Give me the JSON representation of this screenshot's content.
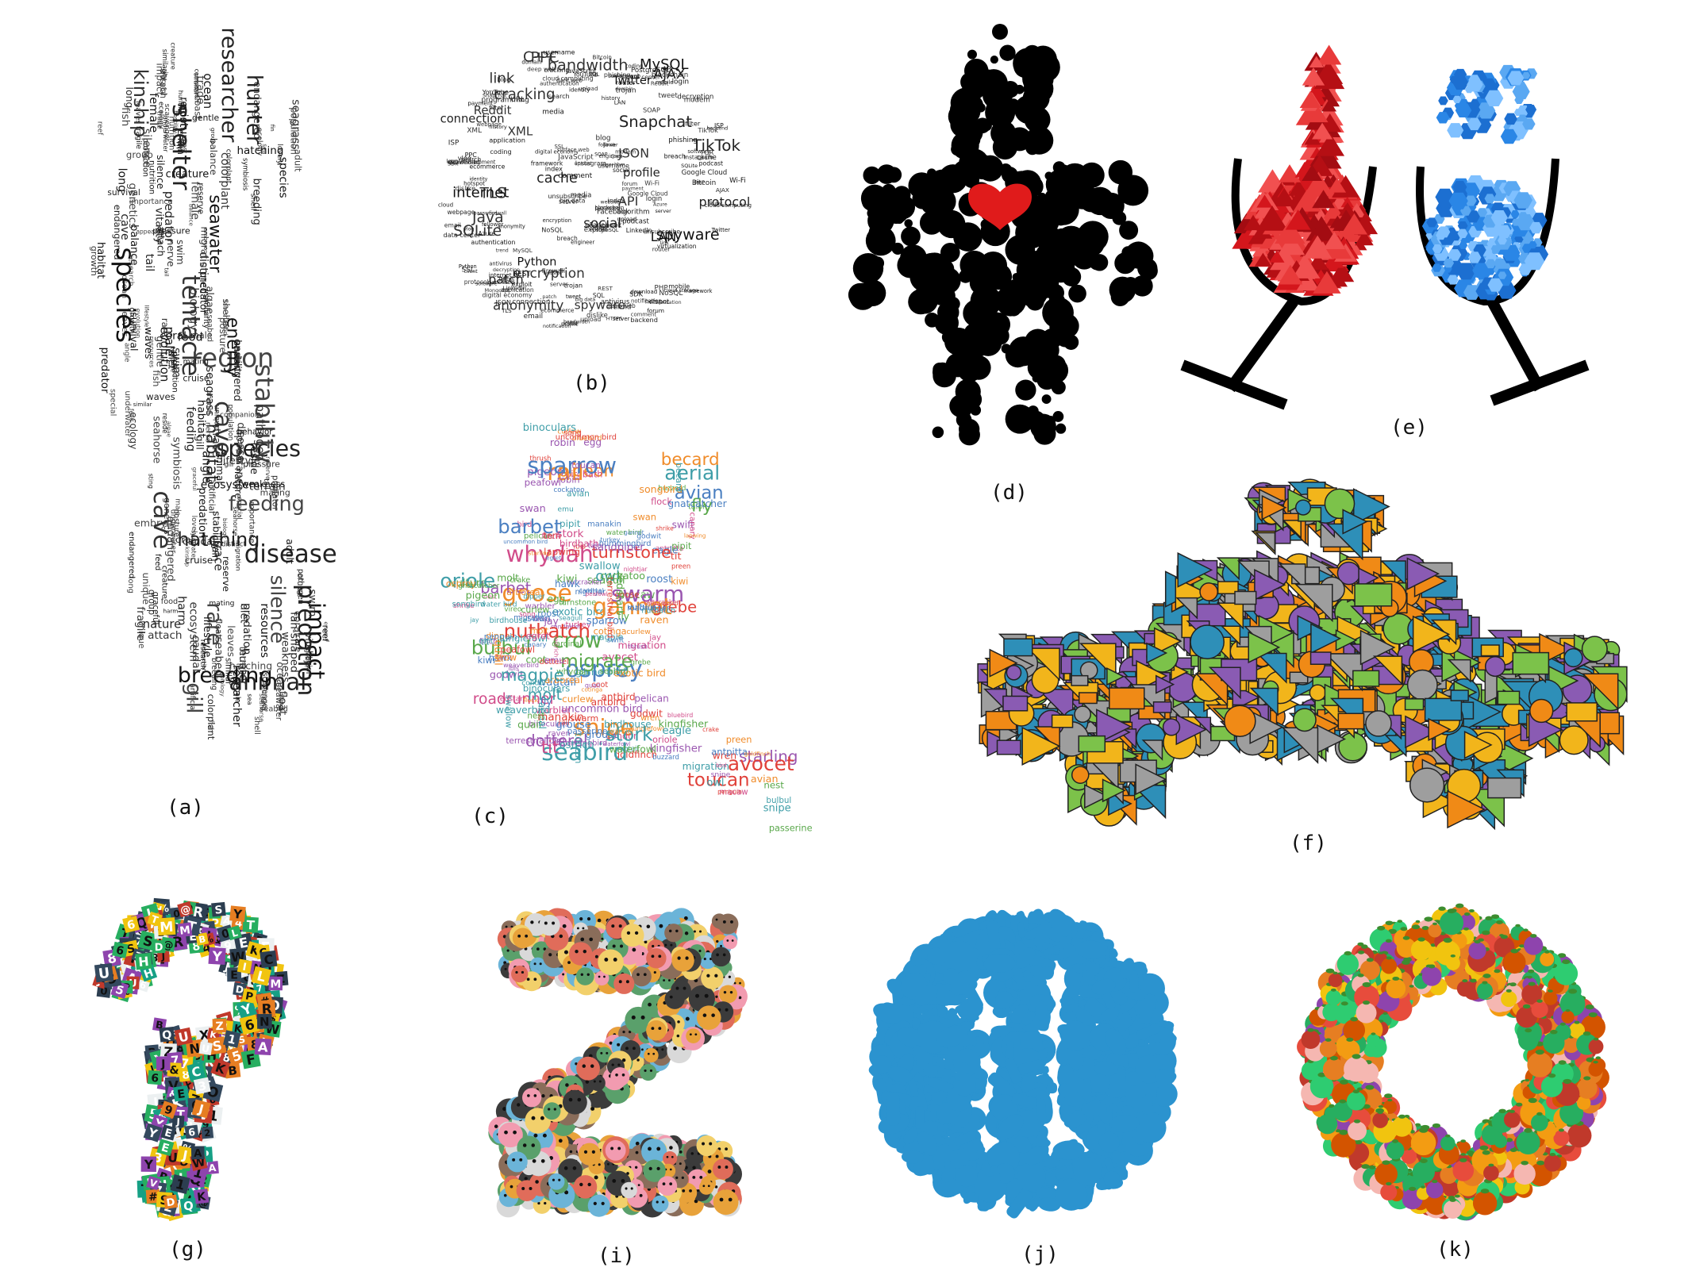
{
  "captions": {
    "a": "(a)",
    "b": "(b)",
    "c": "(c)",
    "d": "(d)",
    "e": "(e)",
    "f": "(f)",
    "g": "(g)",
    "i": "(i)",
    "j": "(j)",
    "k": "(k)"
  },
  "colors": {
    "black": "#000000",
    "heart_red": "#e01b1b",
    "wine_red": "#d4161c",
    "water_blue": "#2a86e6",
    "taxi_yellow": "#f2b51b",
    "taxi_orange": "#f08a16",
    "taxi_blue": "#2e8fb8",
    "taxi_green": "#7cc24a",
    "taxi_purple": "#8a5bb3",
    "taxi_gray": "#9e9e9e",
    "plate_blue": "#2b93cf"
  },
  "panel_a": {
    "shape": "seahorse",
    "words": [
      "seahorse",
      "ocean",
      "fish",
      "gill",
      "coral",
      "rare",
      "underwater",
      "creature",
      "species",
      "protection",
      "gentle",
      "endangered",
      "cruise",
      "posture",
      "biology",
      "shell",
      "female",
      "predation",
      "colorplant",
      "long",
      "seawater",
      "mating",
      "tail",
      "leaves",
      "lifestyle",
      "cave",
      "ecology",
      "unique",
      "hatching",
      "male",
      "breeding",
      "graceful",
      "silence",
      "balance",
      "habitat",
      "swim",
      "seabed",
      "reserve",
      "animal",
      "similar",
      "group",
      "attach",
      "hunting",
      "special",
      "enemy",
      "impact",
      "disease",
      "region",
      "harm",
      "algae",
      "adult",
      "growth",
      "endangered",
      "feeding",
      "nature",
      "stability",
      "researcher",
      "diet",
      "float",
      "reside",
      "terrain",
      "hunter",
      "caudal",
      "fin",
      "food",
      "chain",
      "pathogen",
      "sea",
      "waves",
      "seagrass",
      "angle",
      "lovely",
      "tentacle",
      "migration",
      "hostility",
      "behavior",
      "resources",
      "trade",
      "genetics",
      "scavenger",
      "population",
      "feed",
      "weakness",
      "artificial",
      "ecosystem",
      "distinct",
      "predator",
      "appearance",
      "kinship",
      "nerve",
      "companion",
      "vitality",
      "shelter",
      "symbiosis",
      "trace",
      "importance",
      "embryo",
      "nutrition",
      "evolution",
      "sting",
      "fan-shaped",
      "research",
      "pressure",
      "survival",
      "predator",
      "fragile",
      "reef",
      "similarity",
      "coast"
    ]
  },
  "panel_b": {
    "shape": "@",
    "words": [
      "index",
      "SQLite",
      "PostgreSQL",
      "framework",
      "notification",
      "data center",
      "upload",
      "ecommerce",
      "TikTok",
      "podcast",
      "Facebook",
      "deep web",
      "application",
      "coding",
      "digital economy",
      "C++",
      "MongoDB",
      "NoSQL",
      "engineer",
      "software",
      "Java",
      "blockchain",
      "anonymity",
      "dark web",
      "encryption",
      "identity",
      "cracking",
      "payment",
      "backend",
      "XML",
      "JSON",
      "Twitter",
      "modem",
      "Wi-Fi",
      "filter",
      "website",
      "logout",
      "connection",
      "internet",
      "authentication",
      "webpage",
      "exploit",
      "antivirus",
      "username",
      "URL",
      "Azure",
      "Reddit",
      "blog",
      "vlog",
      "spyware",
      "HTTPS",
      "client",
      "bandwidth",
      "server",
      "upload",
      "trend",
      "ISP",
      "LAN",
      "protocol",
      "download",
      "dislike",
      "router",
      "login",
      "trojan",
      "AJAX",
      "search",
      "hotspot",
      "firewall",
      "password",
      "Bitcoin",
      "history",
      "Python",
      "SDK",
      "SOAP",
      "phishing",
      "domain",
      "email",
      "big data",
      "decryption",
      "breach",
      "cache",
      "social",
      "media",
      "surface web",
      "patch",
      "TOR",
      "algorithm",
      "SSL",
      "forum",
      "TLS",
      "link",
      "REST",
      "SQL",
      "Instagram",
      "Snapchat",
      "LinkedIn",
      "YouTube",
      "PHP",
      "JavaScript",
      "cloud",
      "Google Cloud",
      "API",
      "PPC",
      "profile",
      "unsubscribe",
      "follower",
      "tweet",
      "MySQL",
      "server",
      "virtualization",
      "comment",
      "mobile",
      "cloud computing",
      "web development",
      "cloud storage",
      "programming",
      "Ruby"
    ]
  },
  "panel_c": {
    "shape": "dove",
    "words": [
      "coot",
      "peafowl",
      "binoculars",
      "jay",
      "kiwi",
      "quail",
      "warbler",
      "fly",
      "godwit",
      "snipe",
      "uncommon bird",
      "tit",
      "pigeon",
      "toucan",
      "swan",
      "molt",
      "avian",
      "nest",
      "goose",
      "flock",
      "grebe",
      "migrate",
      "birdbath",
      "cardinal",
      "roadrunner",
      "terrestrial bird",
      "birdhouse",
      "kingfisher",
      "nightjar",
      "barbet",
      "hawk",
      "crake",
      "whydah",
      "preen",
      "starling",
      "redstart",
      "wagtail",
      "antpitta",
      "bluebird",
      "swift",
      "aerial",
      "dotterel",
      "vireo",
      "eagle",
      "lapwing",
      "crow",
      "wren",
      "turkey",
      "robin",
      "shrike",
      "vulture",
      "condor",
      "tern",
      "egg",
      "grouse",
      "songbird",
      "osprey",
      "swallow",
      "pelican",
      "migration",
      "canary",
      "seagull",
      "talon",
      "bulbul",
      "avocet",
      "dipper",
      "manakin",
      "oriole",
      "macaw",
      "sparrow",
      "curlew",
      "cotinga",
      "ostrich",
      "bird",
      "waterfowl",
      "passerine",
      "goldfinch",
      "exotic bird",
      "raven",
      "thrush",
      "turnstone",
      "game bird",
      "sandpiper",
      "antbird",
      "junglefowl",
      "magpie",
      "penguin",
      "swarm",
      "roost",
      "gannet",
      "egret",
      "pipit",
      "owl",
      "seabird",
      "ibis",
      "rail",
      "stork",
      "song",
      "finch",
      "nuthatch",
      "gnatcatcher",
      "water bird",
      "weaverbird",
      "hummingbird",
      "emu",
      "becard",
      "curlew",
      "arboreal",
      "buzzard",
      "cockatoo",
      "nutcracker"
    ]
  },
  "panel_d": {
    "shape": "robot",
    "figure": "circles",
    "accent": "heart"
  },
  "panel_e": {
    "shape": "two wine glasses",
    "left": "red triangles",
    "right": "blue hexagons"
  },
  "panel_f": {
    "shape": "taxi",
    "figure": "mixed shapes"
  },
  "panel_g": {
    "shape": "question mark",
    "figure": "magazine letter cut-outs"
  },
  "panel_i": {
    "shape": "Z",
    "figure": "cartoon animals"
  },
  "panel_j": {
    "shape": "circle",
    "figure": "kitchen utensils"
  },
  "panel_k": {
    "shape": "ring",
    "figure": "fruits and desserts"
  }
}
